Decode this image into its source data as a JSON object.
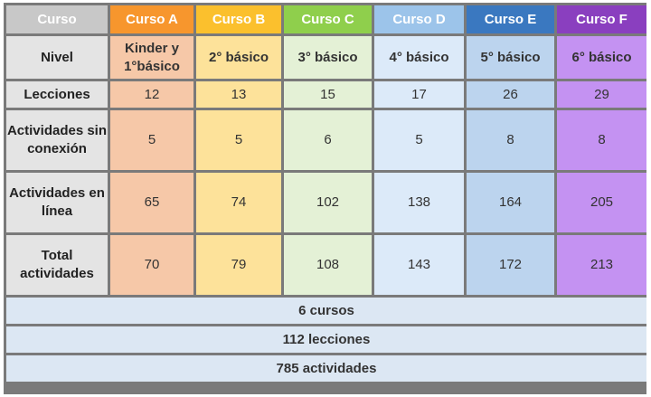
{
  "header": {
    "corner": "Curso",
    "courses": [
      "Curso A",
      "Curso B",
      "Curso C",
      "Curso D",
      "Curso E",
      "Curso F"
    ]
  },
  "colors": {
    "corner_header": "#c8c8c8",
    "course_headers": [
      "#f7962d",
      "#fbc02d",
      "#8fcf4c",
      "#9cc4ea",
      "#3a78c0",
      "#8a3fbf"
    ],
    "course_cells": [
      "#f6c8a8",
      "#fde29a",
      "#e4f1d6",
      "#dceaf9",
      "#bcd4ee",
      "#c492f2"
    ]
  },
  "rows": [
    {
      "label": "Nivel",
      "values": [
        "Kinder y 1°básico",
        "2° básico",
        "3° básico",
        "4° básico",
        "5° básico",
        "6° básico"
      ]
    },
    {
      "label": "Lecciones",
      "values": [
        "12",
        "13",
        "15",
        "17",
        "26",
        "29"
      ]
    },
    {
      "label": "Actividades sin conexión",
      "values": [
        "5",
        "5",
        "6",
        "5",
        "8",
        "8"
      ]
    },
    {
      "label": "Actividades en línea",
      "values": [
        "65",
        "74",
        "102",
        "138",
        "164",
        "205"
      ]
    },
    {
      "label": "Total actividades",
      "values": [
        "70",
        "79",
        "108",
        "143",
        "172",
        "213"
      ]
    }
  ],
  "summary": [
    "6 cursos",
    "112 lecciones",
    "785 actividades"
  ]
}
